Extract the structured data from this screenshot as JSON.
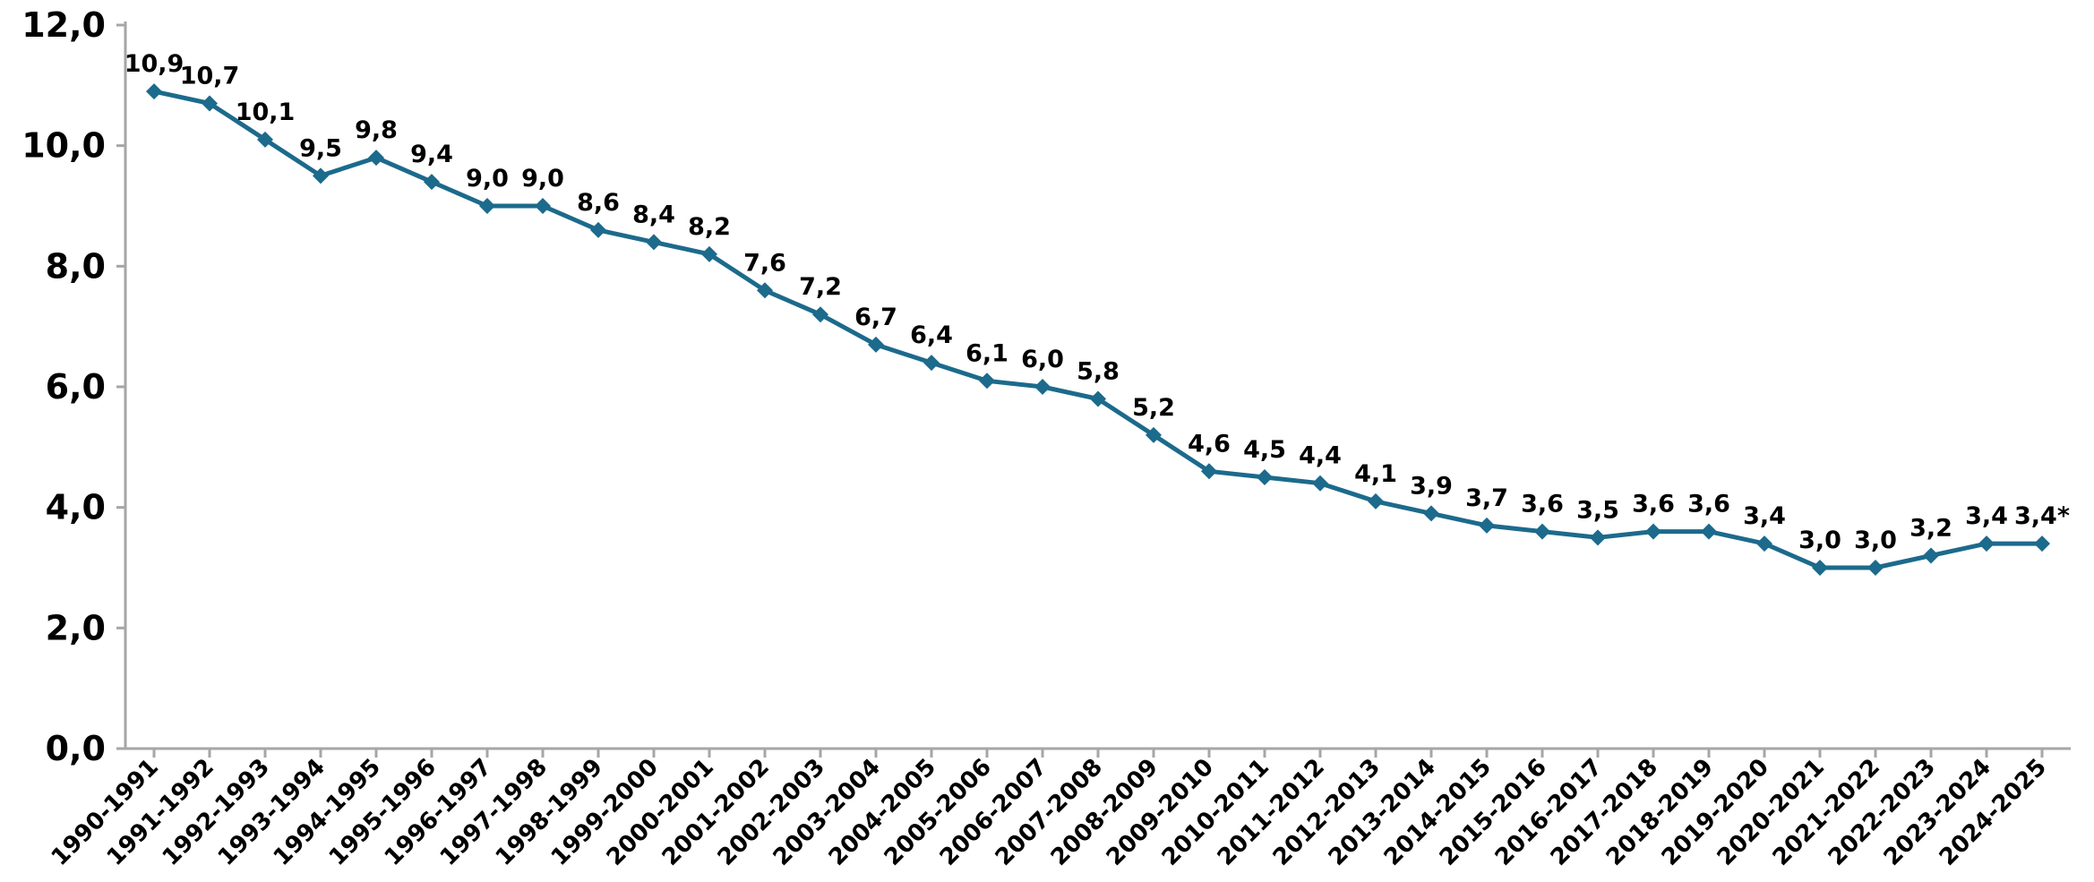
{
  "chart_data": {
    "type": "line",
    "title": "",
    "xlabel": "",
    "ylabel": "",
    "ylim": [
      0,
      12
    ],
    "yticks": [
      "0,0",
      "2,0",
      "4,0",
      "6,0",
      "8,0",
      "10,0",
      "12,0"
    ],
    "ytick_values": [
      0,
      2,
      4,
      6,
      8,
      10,
      12
    ],
    "grid": false,
    "legend": "none",
    "marker": "diamond",
    "line_color": "#1c6a8c",
    "categories": [
      "1990-1991",
      "1991-1992",
      "1992-1993",
      "1993-1994",
      "1994-1995",
      "1995-1996",
      "1996-1997",
      "1997-1998",
      "1998-1999",
      "1999-2000",
      "2000-2001",
      "2001-2002",
      "2002-2003",
      "2003-2004",
      "2004-2005",
      "2005-2006",
      "2006-2007",
      "2007-2008",
      "2008-2009",
      "2009-2010",
      "2010-2011",
      "2011-2012",
      "2012-2013",
      "2013-2014",
      "2014-2015",
      "2015-2016",
      "2016-2017",
      "2017-2018",
      "2018-2019",
      "2019-2020",
      "2020-2021",
      "2021-2022",
      "2022-2023",
      "2023-2024",
      "2024-2025"
    ],
    "values": [
      10.9,
      10.7,
      10.1,
      9.5,
      9.8,
      9.4,
      9.0,
      9.0,
      8.6,
      8.4,
      8.2,
      7.6,
      7.2,
      6.7,
      6.4,
      6.1,
      6.0,
      5.8,
      5.2,
      4.6,
      4.5,
      4.4,
      4.1,
      3.9,
      3.7,
      3.6,
      3.5,
      3.6,
      3.6,
      3.4,
      3.0,
      3.0,
      3.2,
      3.4,
      3.4
    ],
    "data_labels": [
      "10,9",
      "10,7",
      "10,1",
      "9,5",
      "9,8",
      "9,4",
      "9,0",
      "9,0",
      "8,6",
      "8,4",
      "8,2",
      "7,6",
      "7,2",
      "6,7",
      "6,4",
      "6,1",
      "6,0",
      "5,8",
      "5,2",
      "4,6",
      "4,5",
      "4,4",
      "4,1",
      "3,9",
      "3,7",
      "3,6",
      "3,5",
      "3,6",
      "3,6",
      "3,4",
      "3,0",
      "3,0",
      "3,2",
      "3,4",
      "3,4*"
    ]
  }
}
